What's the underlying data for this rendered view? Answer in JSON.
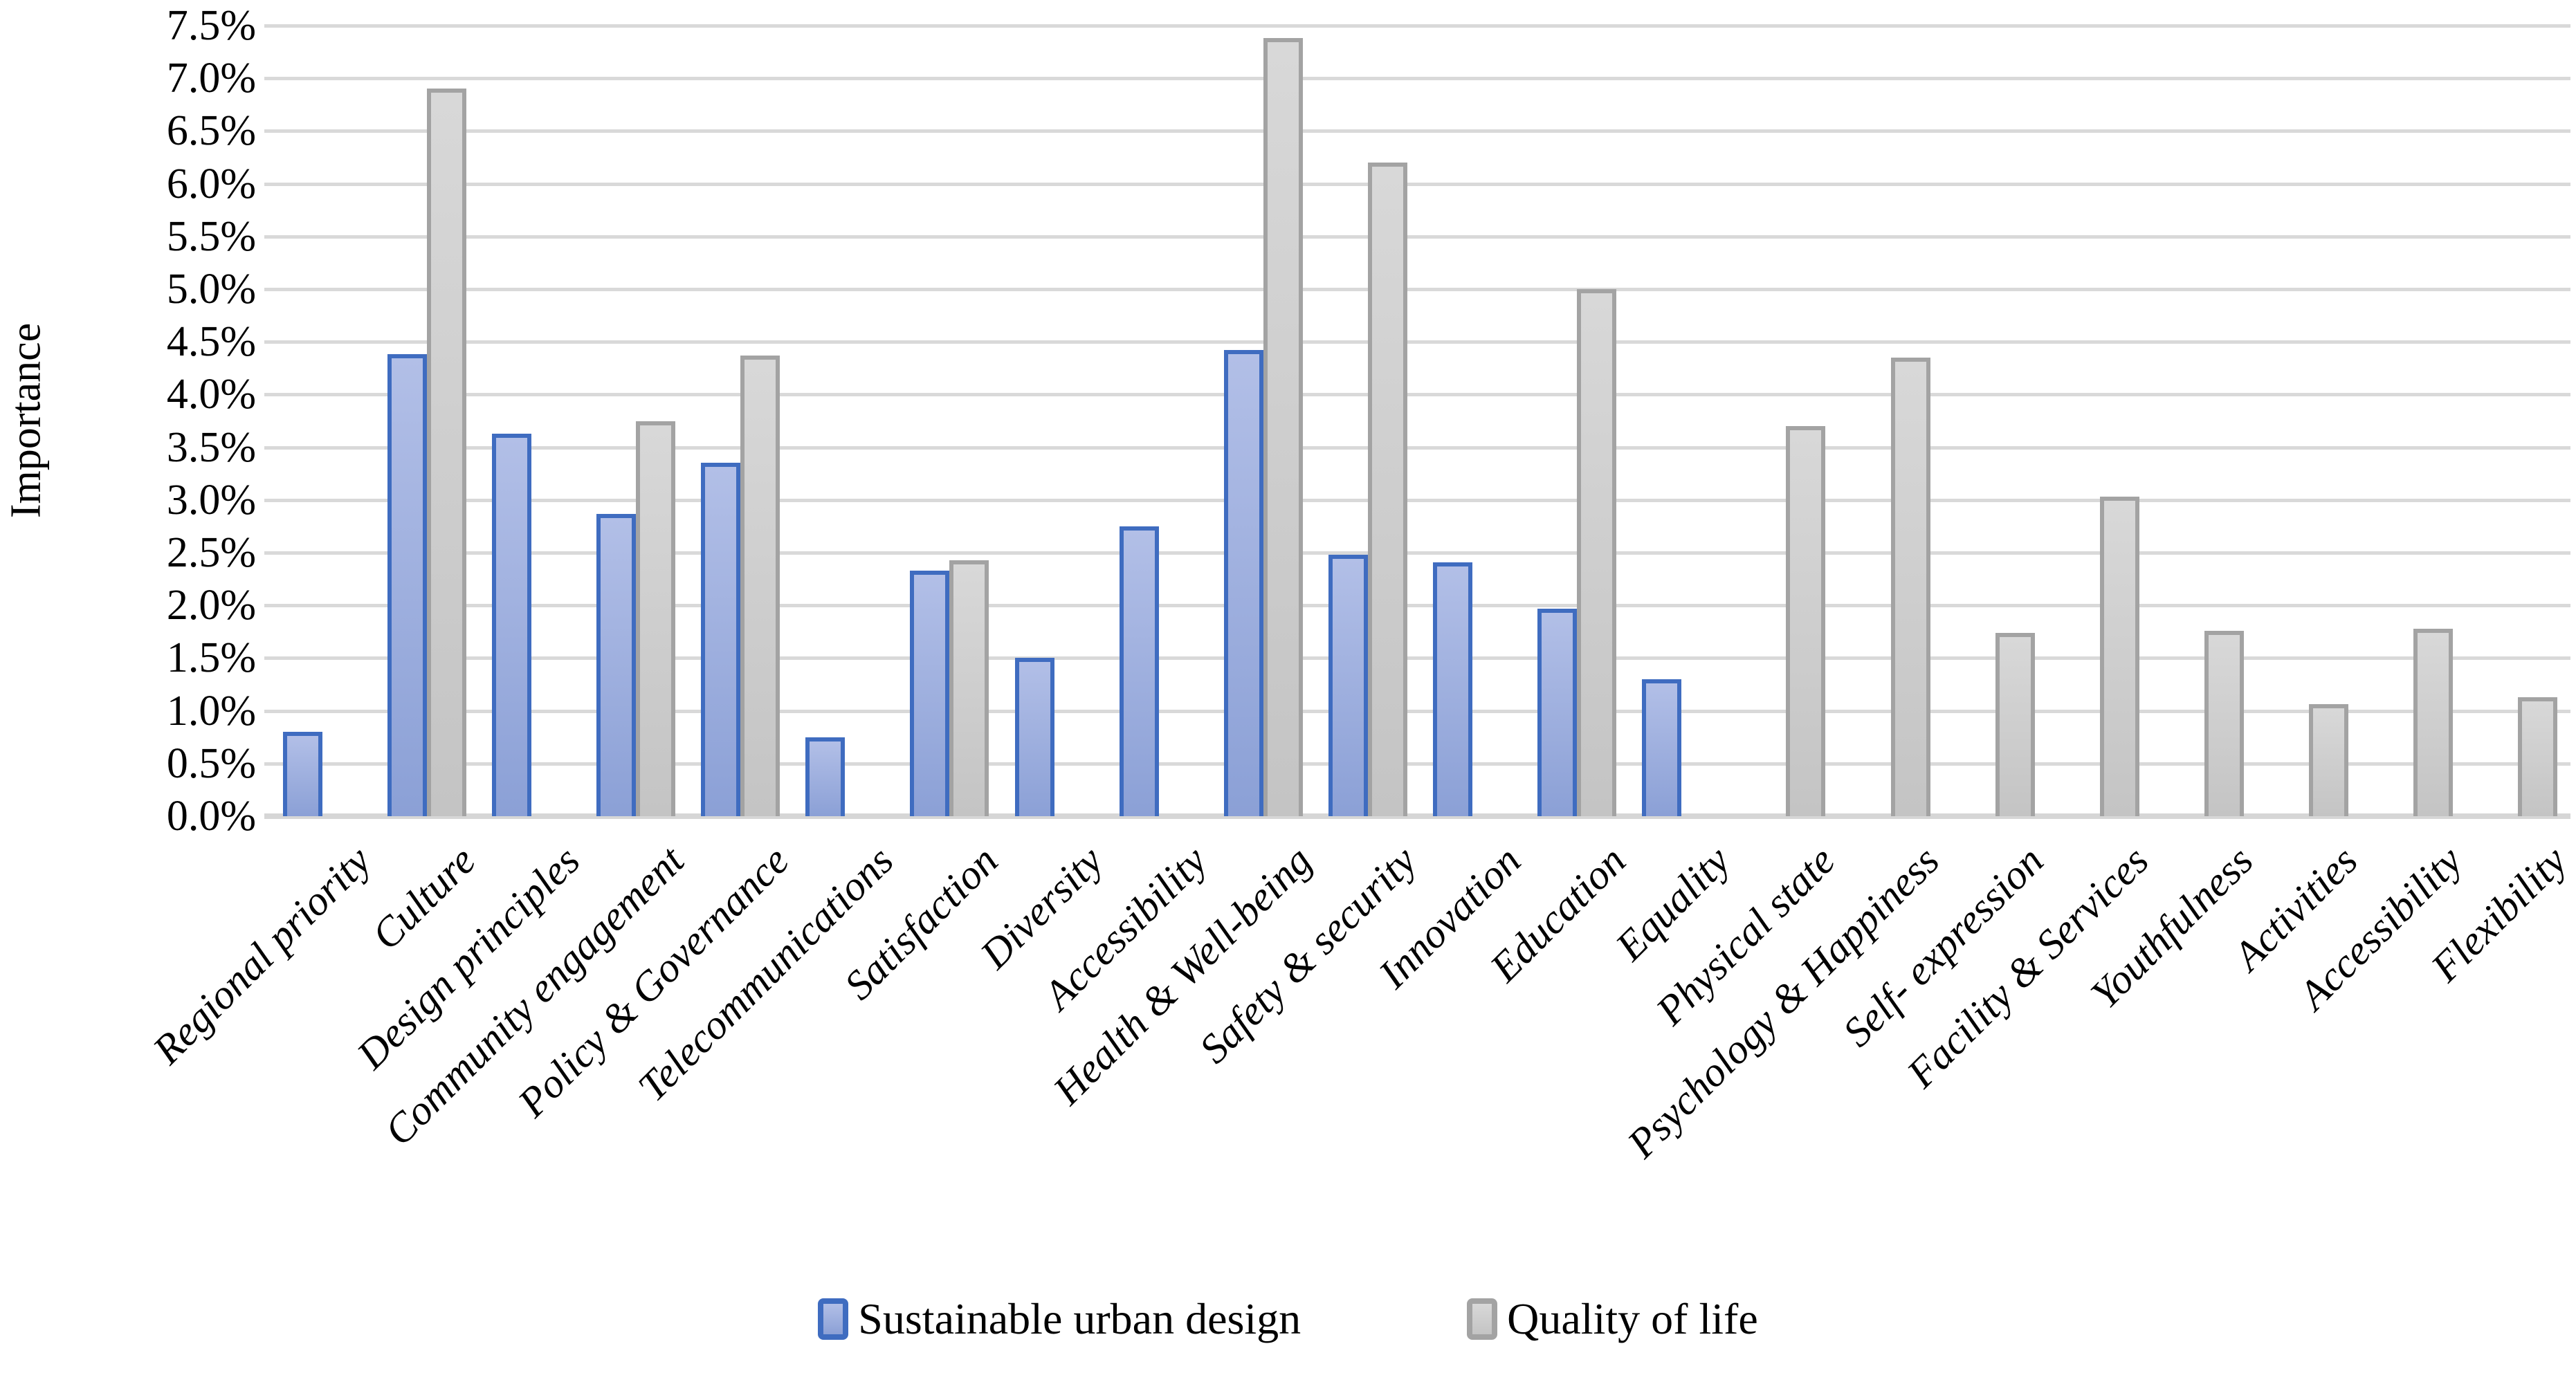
{
  "chart_data": {
    "type": "bar",
    "title": "",
    "ylabel": "Importance",
    "xlabel": "",
    "ylim": [
      0,
      7.5
    ],
    "ytick_step": 0.5,
    "ytick_labels": [
      "0.0%",
      "0.5%",
      "1.0%",
      "1.5%",
      "2.0%",
      "2.5%",
      "3.0%",
      "3.5%",
      "4.0%",
      "4.5%",
      "5.0%",
      "5.5%",
      "6.0%",
      "6.5%",
      "7.0%",
      "7.5%"
    ],
    "grid": true,
    "legend_position": "bottom",
    "categories": [
      "Regional priority",
      "Culture",
      "Design principles",
      "Community engagement",
      "Policy & Governance",
      "Telecommunications",
      "Satisfaction",
      "Diversity",
      "Accessibility",
      "Health & Well-being",
      "Safety & security",
      "Innovation",
      "Education",
      "Equality",
      "Physical state",
      "Psychology & Happiness",
      "Self- expression",
      "Facility & Services",
      "Youthfulness",
      "Activities",
      "Accessibility",
      "Flexibility"
    ],
    "series": [
      {
        "name": "Sustainable urban design",
        "unit": "%",
        "fill_top": "#b2bfe7",
        "fill_bottom": "#8ba0d6",
        "border": "#3f6cc0",
        "values": [
          0.8,
          4.38,
          3.63,
          2.87,
          3.35,
          0.75,
          2.33,
          1.5,
          2.75,
          4.42,
          2.48,
          2.41,
          1.97,
          1.3,
          null,
          null,
          null,
          null,
          null,
          null,
          null,
          null
        ]
      },
      {
        "name": "Quality of life",
        "unit": "%",
        "fill_top": "#d8d8d8",
        "fill_bottom": "#c4c4c4",
        "border": "#a3a3a3",
        "values": [
          null,
          6.9,
          null,
          3.75,
          4.37,
          null,
          2.43,
          null,
          null,
          7.38,
          6.2,
          null,
          5.0,
          null,
          3.7,
          4.35,
          1.74,
          3.03,
          1.76,
          1.06,
          1.78,
          1.13
        ]
      }
    ],
    "colors": {
      "gridline": "#d9d9d9",
      "axis_line": "#d6d6d6",
      "text": "#000000",
      "background": "#ffffff"
    }
  }
}
